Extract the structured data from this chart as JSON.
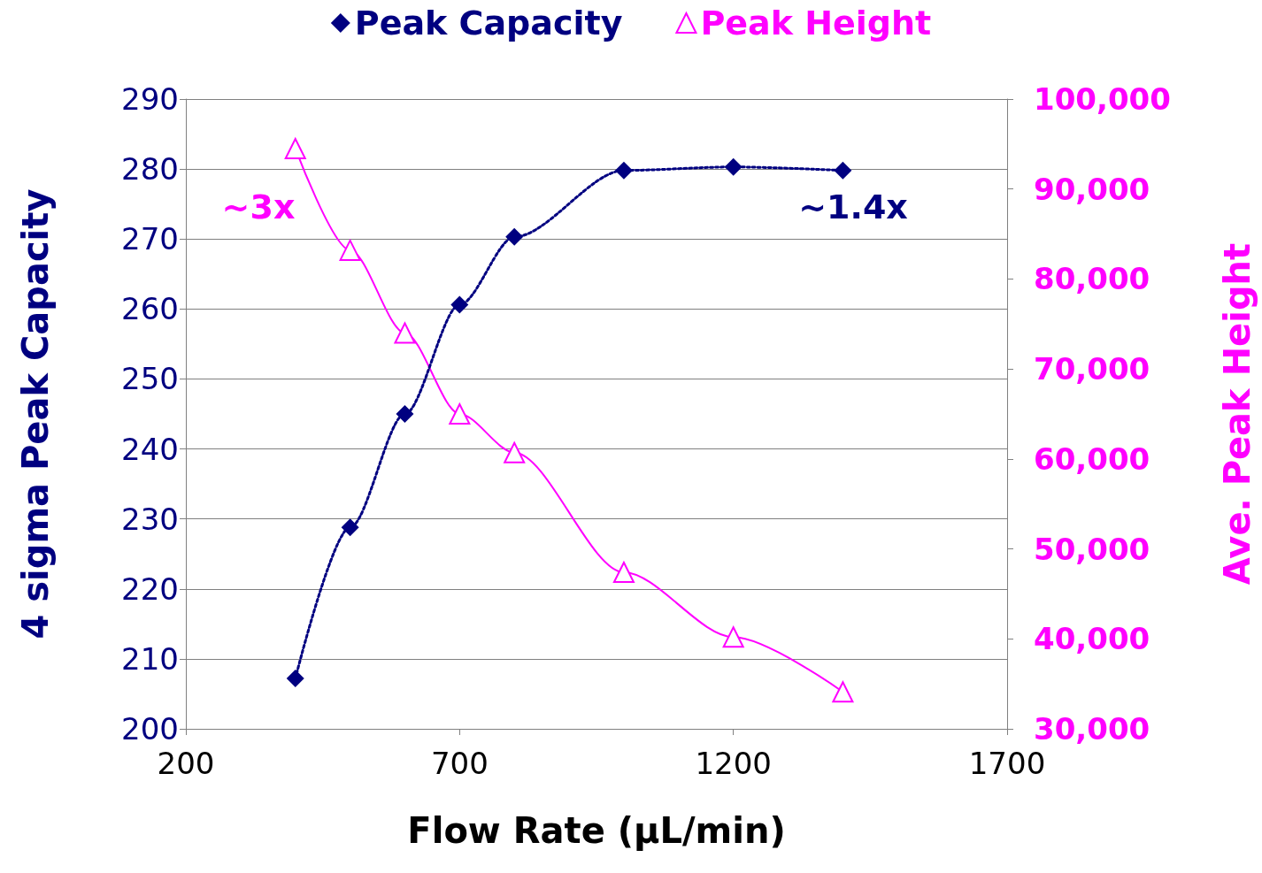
{
  "chart_data": {
    "type": "line",
    "xlabel": "Flow Rate (µL/min)",
    "ylabel": "4 sigma Peak Capacity",
    "y2label": "Ave. Peak Height",
    "xlim": [
      200,
      1700
    ],
    "xticks": [
      200,
      700,
      1200,
      1700
    ],
    "ylim": [
      200,
      290
    ],
    "yticks": [
      200,
      210,
      220,
      230,
      240,
      250,
      260,
      270,
      280,
      290
    ],
    "y2lim": [
      30000,
      100000
    ],
    "y2ticks": [
      {
        "value": 30000,
        "label": "30,000"
      },
      {
        "value": 40000,
        "label": "40,000"
      },
      {
        "value": 50000,
        "label": "50,000"
      },
      {
        "value": 60000,
        "label": "60,000"
      },
      {
        "value": 70000,
        "label": "70,000"
      },
      {
        "value": 80000,
        "label": "80,000"
      },
      {
        "value": 90000,
        "label": "90,000"
      },
      {
        "value": 100000,
        "label": "100,000"
      }
    ],
    "grid": "y",
    "legend": "top",
    "series": [
      {
        "name": "Peak Capacity",
        "color": "#000080",
        "marker": "diamond",
        "line_style": "dotted",
        "x": [
          400,
          500,
          600,
          700,
          800,
          1000,
          1200,
          1400
        ],
        "values": [
          207.2,
          228.8,
          245,
          260.6,
          270.3,
          279.8,
          280.3,
          279.8
        ]
      },
      {
        "name": "Peak Height",
        "color": "#ff00ff",
        "marker": "triangle",
        "line_style": "solid",
        "axis": "y2",
        "x": [
          400,
          500,
          600,
          700,
          800,
          1000,
          1200,
          1400
        ],
        "values": [
          94500,
          83200,
          74000,
          65000,
          60700,
          47400,
          40200,
          34100
        ]
      }
    ],
    "annotations": [
      "~3x",
      "~1.4x"
    ]
  }
}
